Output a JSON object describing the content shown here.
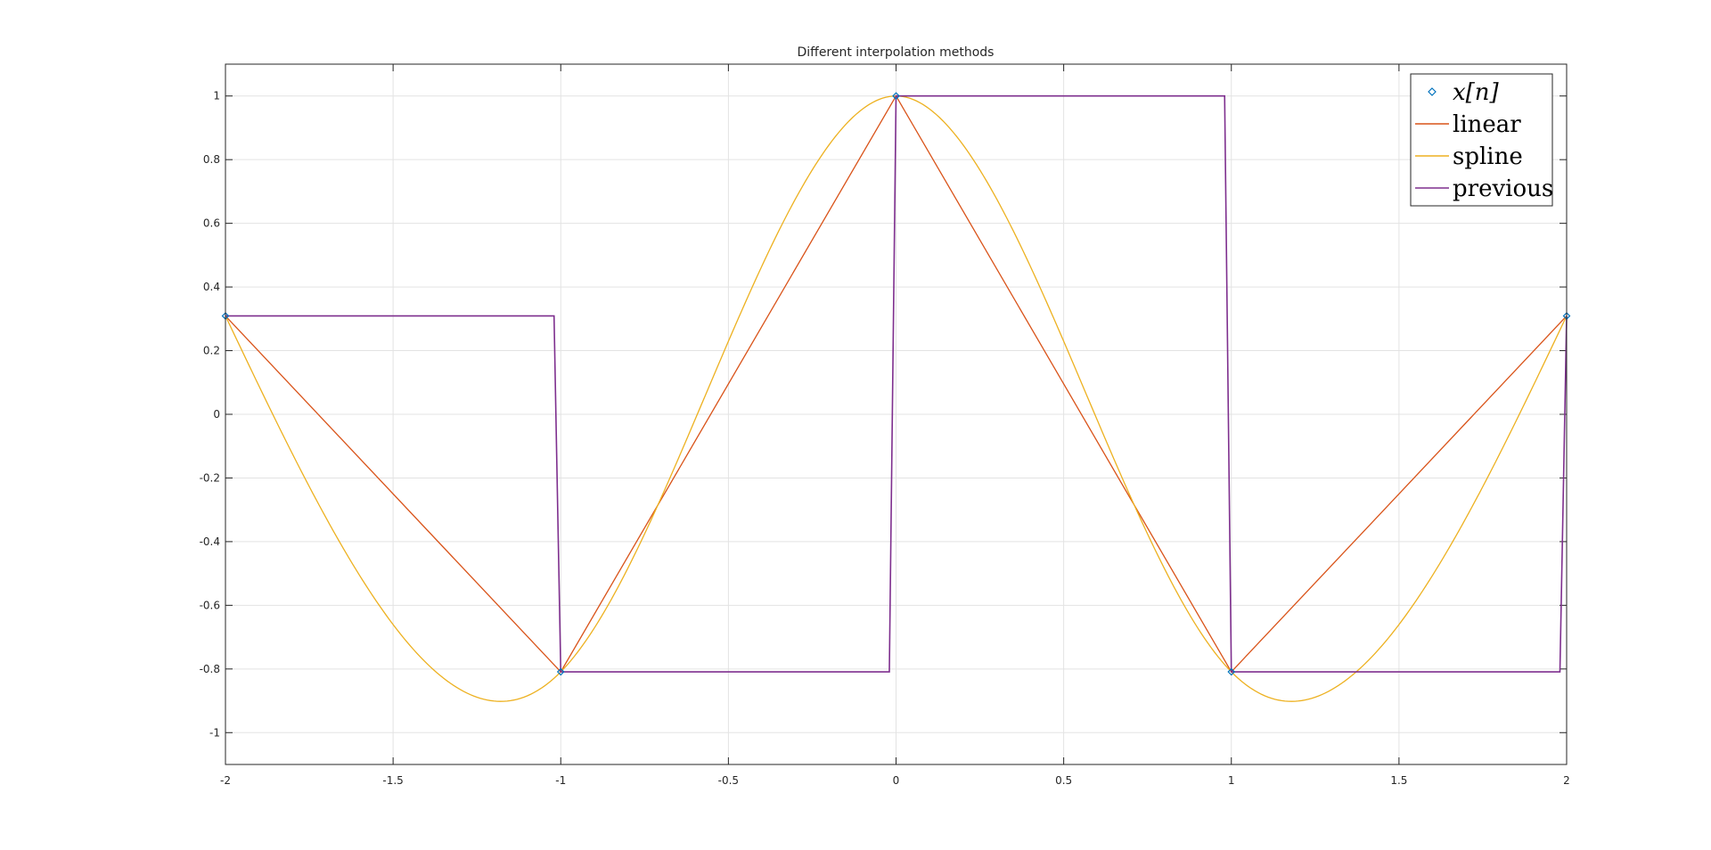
{
  "chart_data": {
    "type": "line",
    "title": "Different interpolation methods",
    "xlabel": "",
    "ylabel": "",
    "xlim": [
      -2,
      2
    ],
    "ylim": [
      -1.1,
      1.1
    ],
    "xticks": [
      -2,
      -1.5,
      -1,
      -0.5,
      0,
      0.5,
      1,
      1.5,
      2
    ],
    "xtick_labels": [
      "-2",
      "-1.5",
      "-1",
      "-0.5",
      "0",
      "0.5",
      "1",
      "1.5",
      "2"
    ],
    "yticks": [
      -1,
      -0.8,
      -0.6,
      -0.4,
      -0.2,
      0,
      0.2,
      0.4,
      0.6,
      0.8,
      1
    ],
    "ytick_labels": [
      "-1",
      "-0.8",
      "-0.6",
      "-0.4",
      "-0.2",
      "0",
      "0.2",
      "0.4",
      "0.6",
      "0.8",
      "1"
    ],
    "grid": true,
    "legend_position": "top-right",
    "x": [
      -2,
      -1,
      0,
      1,
      2
    ],
    "series": [
      {
        "name": "x[n]",
        "style": "markers",
        "marker": "diamond",
        "color": "#0072BD",
        "values": [
          0.309,
          -0.809,
          1.0,
          -0.809,
          0.309
        ]
      },
      {
        "name": "linear",
        "style": "line",
        "color": "#D95319",
        "values": [
          0.309,
          -0.809,
          1.0,
          -0.809,
          0.309
        ]
      },
      {
        "name": "spline",
        "style": "smooth",
        "color": "#EDB120",
        "values": [
          0.309,
          -0.809,
          1.0,
          -0.809,
          0.309
        ]
      },
      {
        "name": "previous",
        "style": "step",
        "color": "#7E2F8E",
        "values": [
          0.309,
          -0.809,
          1.0,
          -0.809,
          0.309
        ]
      }
    ]
  }
}
